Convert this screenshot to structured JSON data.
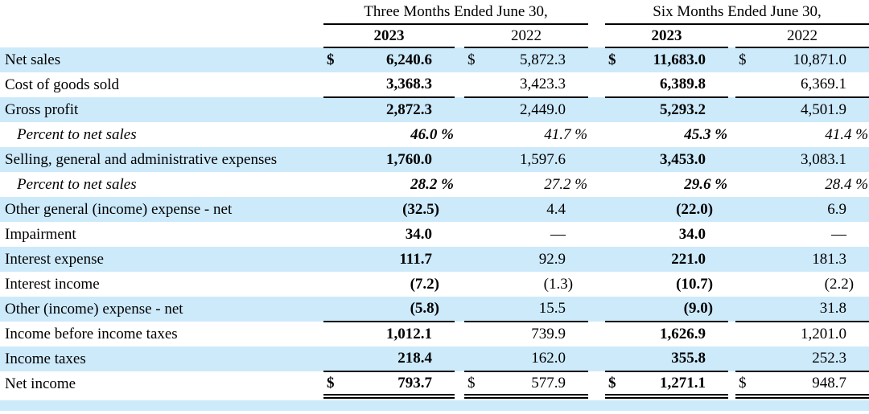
{
  "colors": {
    "row_highlight": "#cdeafb",
    "rule": "#000000"
  },
  "table": {
    "period_headers": [
      {
        "label": "Three Months Ended June 30,"
      },
      {
        "label": "Six Months Ended June 30,"
      }
    ],
    "year_headers": [
      {
        "label": "2023",
        "bold": true
      },
      {
        "label": "2022",
        "bold": false
      },
      {
        "label": "2023",
        "bold": true
      },
      {
        "label": "2022",
        "bold": false
      }
    ],
    "rows": [
      {
        "label": "Net sales",
        "shaded": true,
        "dollar": true,
        "values": [
          "6,240.6",
          "5,872.3",
          "11,683.0",
          "10,871.0"
        ]
      },
      {
        "label": "Cost of goods sold",
        "shaded": false,
        "rule_below": true,
        "values": [
          "3,368.3",
          "3,423.3",
          "6,389.8",
          "6,369.1"
        ]
      },
      {
        "label": "Gross profit",
        "shaded": true,
        "values": [
          "2,872.3",
          "2,449.0",
          "5,293.2",
          "4,501.9"
        ]
      },
      {
        "label": "Percent to net sales",
        "shaded": false,
        "italic": true,
        "indent": true,
        "values": [
          "46.0 %",
          "41.7 %",
          "45.3 %",
          "41.4 %"
        ]
      },
      {
        "label": "Selling, general and administrative expenses",
        "shaded": true,
        "values": [
          "1,760.0",
          "1,597.6",
          "3,453.0",
          "3,083.1"
        ]
      },
      {
        "label": "Percent to net sales",
        "shaded": false,
        "italic": true,
        "indent": true,
        "values": [
          "28.2 %",
          "27.2 %",
          "29.6 %",
          "28.4 %"
        ]
      },
      {
        "label": "Other general (income) expense - net",
        "shaded": true,
        "values": [
          "(32.5)",
          "4.4",
          "(22.0)",
          "6.9"
        ]
      },
      {
        "label": "Impairment",
        "shaded": false,
        "values": [
          "34.0",
          "—",
          "34.0",
          "—"
        ]
      },
      {
        "label": "Interest expense",
        "shaded": true,
        "values": [
          "111.7",
          "92.9",
          "221.0",
          "181.3"
        ]
      },
      {
        "label": "Interest income",
        "shaded": false,
        "values": [
          "(7.2)",
          "(1.3)",
          "(10.7)",
          "(2.2)"
        ]
      },
      {
        "label": "Other (income) expense - net",
        "shaded": true,
        "rule_below": true,
        "values": [
          "(5.8)",
          "15.5",
          "(9.0)",
          "31.8"
        ]
      },
      {
        "label": "Income before income taxes",
        "shaded": false,
        "values": [
          "1,012.1",
          "739.9",
          "1,626.9",
          "1,201.0"
        ]
      },
      {
        "label": "Income taxes",
        "shaded": true,
        "rule_below": true,
        "values": [
          "218.4",
          "162.0",
          "355.8",
          "252.3"
        ]
      },
      {
        "label": "Net income",
        "shaded": false,
        "dollar": true,
        "double_rule_below": true,
        "values": [
          "793.7",
          "577.9",
          "1,271.1",
          "948.7"
        ]
      }
    ]
  }
}
